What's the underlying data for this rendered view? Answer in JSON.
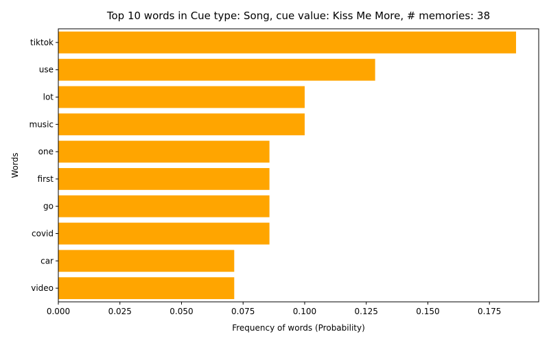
{
  "chart_data": {
    "type": "bar",
    "orientation": "horizontal",
    "title": "Top 10 words in Cue type: Song, cue value: Kiss Me More, # memories: 38",
    "xlabel": "Frequency of words (Probability)",
    "ylabel": "Words",
    "categories": [
      "tiktok",
      "use",
      "lot",
      "music",
      "one",
      "first",
      "go",
      "covid",
      "car",
      "video"
    ],
    "values": [
      0.1858,
      0.1286,
      0.1,
      0.1,
      0.0857,
      0.0857,
      0.0857,
      0.0857,
      0.0714,
      0.0714
    ],
    "xlim": [
      0,
      0.195
    ],
    "xticks": [
      "0.000",
      "0.025",
      "0.050",
      "0.075",
      "0.100",
      "0.125",
      "0.150",
      "0.175"
    ],
    "bar_color": "#ffa500",
    "grid": false,
    "legend": "none"
  }
}
